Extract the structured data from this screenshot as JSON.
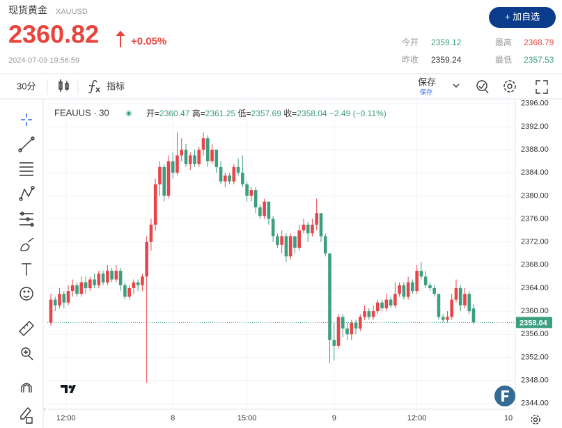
{
  "header": {
    "title": "现货黄金",
    "symbol": "XAUUSD",
    "price": "2360.82",
    "change": "+0.05%",
    "time": "2024-07-09 19:56:59",
    "button": "+ 加自选"
  },
  "stats": [
    {
      "label": "今开",
      "value": "2359.12"
    },
    {
      "label": "最高",
      "value": "2368.79"
    },
    {
      "label": "昨收",
      "value": "2359.24"
    },
    {
      "label": "最低",
      "value": "2357.53"
    }
  ],
  "toolbar": {
    "interval": "30分",
    "indicators": "指标",
    "save": "保存",
    "save_sub": "保存"
  },
  "chart_data": {
    "type": "candlestick",
    "legend": "FEAUUS · 30",
    "ohlc": [
      {
        "label": "开=",
        "value": "2360.47"
      },
      {
        "label": "高=",
        "value": "2361.25"
      },
      {
        "label": "低=",
        "value": "2357.69"
      },
      {
        "label": "收=",
        "value": "2358.04"
      },
      {
        "label": "",
        "value": "−2.49 (−0.11%)"
      }
    ],
    "up_color": "#e8454a",
    "down_color": "#3d9e80",
    "open": [
      2358,
      2362,
      2361,
      2363,
      2361.5,
      2363.5,
      2364.5,
      2363,
      2365,
      2364,
      2365.5,
      2364.5,
      2366.5,
      2365,
      2367,
      2365.5,
      2367,
      2364.5,
      2362.5,
      2364,
      2365,
      2364.5,
      2366,
      2372,
      2375,
      2382,
      2385,
      2380,
      2386,
      2384,
      2387,
      2388,
      2385.5,
      2387,
      2385.5,
      2388,
      2390,
      2386,
      2388,
      2385,
      2382.5,
      2383.5,
      2382.5,
      2385,
      2384,
      2382,
      2380,
      2381,
      2378,
      2376.5,
      2379,
      2376,
      2373,
      2371.5,
      2373,
      2369.5,
      2373,
      2371,
      2374,
      2375,
      2373.5,
      2375,
      2377,
      2373,
      2370,
      2355,
      2354,
      2359,
      2357,
      2356,
      2358,
      2357,
      2359,
      2360,
      2359,
      2360,
      2361.5,
      2360.5,
      2362,
      2361,
      2363,
      2364.5,
      2362.5,
      2365,
      2363.5,
      2367,
      2366,
      2364.5,
      2364,
      2363,
      2359,
      2358.5,
      2359,
      2362,
      2364,
      2361,
      2363,
      2360.47
    ],
    "high": [
      2363,
      2362.5,
      2364,
      2363.5,
      2364.5,
      2365.5,
      2365,
      2366,
      2366,
      2366,
      2366.5,
      2367,
      2367,
      2368,
      2367.5,
      2368,
      2367.5,
      2365,
      2364.5,
      2365.5,
      2365.5,
      2366.5,
      2373,
      2376,
      2383,
      2386,
      2385.5,
      2387,
      2387.5,
      2391,
      2390,
      2389,
      2387.5,
      2388,
      2388.5,
      2391,
      2390.5,
      2389,
      2388,
      2386,
      2384,
      2384,
      2385.5,
      2386.5,
      2387,
      2382.5,
      2381.5,
      2381.5,
      2378.5,
      2379.5,
      2379,
      2376.5,
      2373.5,
      2374,
      2373.5,
      2373.5,
      2373,
      2375,
      2376,
      2375.5,
      2376,
      2379.5,
      2377,
      2373.5,
      2370,
      2358,
      2359.5,
      2359.5,
      2358,
      2358.5,
      2358.5,
      2359.5,
      2361,
      2360.5,
      2361,
      2362,
      2362,
      2363,
      2362.5,
      2365,
      2365,
      2365,
      2366,
      2365.5,
      2368,
      2368.5,
      2367,
      2365,
      2364.5,
      2363,
      2359.5,
      2360,
      2363,
      2365.5,
      2364.5,
      2364,
      2363.5,
      2361.25
    ],
    "low": [
      2357.5,
      2360,
      2360.5,
      2360.5,
      2361,
      2362.5,
      2362.5,
      2362.5,
      2363,
      2363.5,
      2364,
      2364,
      2364.5,
      2364.5,
      2365,
      2365,
      2363.5,
      2362,
      2362,
      2363,
      2363.5,
      2363.5,
      2347.6,
      2370.5,
      2374,
      2380,
      2379,
      2379.5,
      2383,
      2383.5,
      2386,
      2385,
      2384.5,
      2385,
      2385,
      2387,
      2385,
      2385.5,
      2384,
      2382,
      2381.5,
      2382,
      2382,
      2383.5,
      2381.5,
      2379,
      2379,
      2377,
      2376,
      2376,
      2375,
      2372,
      2371,
      2370,
      2368.5,
      2369,
      2370,
      2370.5,
      2373.5,
      2372,
      2373,
      2374,
      2372,
      2369.5,
      2351,
      2351.5,
      2353.5,
      2355.5,
      2355,
      2355,
      2356,
      2356.5,
      2358.5,
      2358.5,
      2358.5,
      2359.5,
      2360,
      2360,
      2360.5,
      2360.5,
      2362.5,
      2362,
      2362,
      2363,
      2363,
      2365.5,
      2364,
      2363.5,
      2362.5,
      2358.5,
      2358,
      2358,
      2358.5,
      2361.5,
      2360,
      2360.5,
      2359.5,
      2357.69
    ],
    "close": [
      2362,
      2361,
      2363,
      2361.5,
      2363.5,
      2364.5,
      2363,
      2365,
      2364,
      2365.5,
      2364.5,
      2366.5,
      2365,
      2367,
      2365.5,
      2367,
      2364.5,
      2362.5,
      2364,
      2365,
      2364.5,
      2366,
      2372,
      2375,
      2382,
      2385,
      2380,
      2386,
      2384,
      2387,
      2388,
      2385.5,
      2387,
      2385.5,
      2388,
      2390,
      2386,
      2388,
      2385,
      2382.5,
      2383.5,
      2382.5,
      2385,
      2384,
      2382,
      2380,
      2381,
      2378,
      2376.5,
      2379,
      2376,
      2373,
      2371.5,
      2373,
      2369.5,
      2373,
      2371,
      2374,
      2375,
      2373.5,
      2375,
      2377,
      2373,
      2370,
      2355,
      2354,
      2359,
      2357,
      2356,
      2358,
      2357,
      2359,
      2360,
      2359,
      2360,
      2361.5,
      2360.5,
      2362,
      2361,
      2363,
      2364.5,
      2362.5,
      2365,
      2363.5,
      2367,
      2366,
      2364.5,
      2364,
      2363,
      2359,
      2358.5,
      2359,
      2362,
      2364,
      2361,
      2363,
      2360,
      2358.04
    ],
    "ylim": [
      2343,
      2396.7
    ],
    "yticks": [
      {
        "value": 2344,
        "label": "2344.00"
      },
      {
        "value": 2348,
        "label": "2348.00"
      },
      {
        "value": 2352,
        "label": "2352.00"
      },
      {
        "value": 2356,
        "label": "2356.00"
      },
      {
        "value": 2360,
        "label": "2360.00"
      },
      {
        "value": 2364,
        "label": "2364.00"
      },
      {
        "value": 2368,
        "label": "2368.00"
      },
      {
        "value": 2372,
        "label": "2372.00"
      },
      {
        "value": 2376,
        "label": "2376.00"
      },
      {
        "value": 2380,
        "label": "2380.00"
      },
      {
        "value": 2384,
        "label": "2384.00"
      },
      {
        "value": 2388,
        "label": "2388.00"
      },
      {
        "value": 2392,
        "label": "2392.00"
      },
      {
        "value": 2396,
        "label": "2396.00"
      }
    ],
    "xticks": [
      {
        "value": 3.5,
        "label": "12:00"
      },
      {
        "value": 28,
        "label": "8"
      },
      {
        "value": 45,
        "label": "15:00"
      },
      {
        "value": 65,
        "label": "9"
      },
      {
        "value": 84,
        "label": "12:00"
      },
      {
        "value": 105,
        "label": "10"
      }
    ],
    "last_price": {
      "value": 2358.04,
      "label": "2358.04"
    },
    "grid": true
  }
}
